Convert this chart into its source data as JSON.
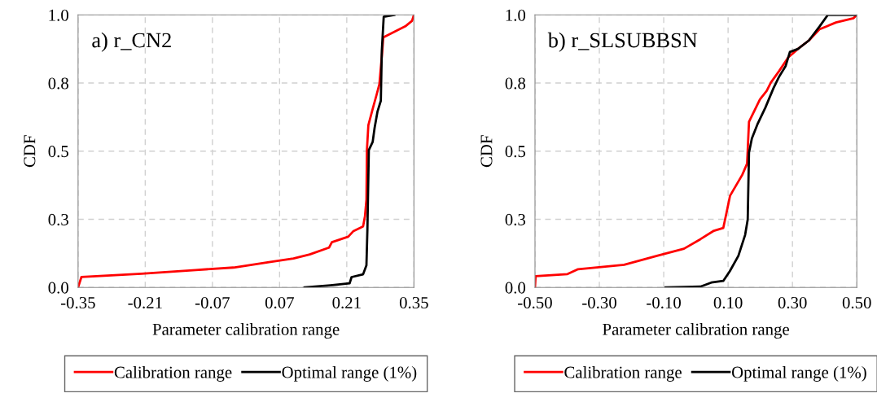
{
  "chart_data": [
    {
      "type": "line",
      "xlabel": "Parameter calibration range",
      "ylabel": "CDF",
      "annotations": [
        "a) r_CN2"
      ],
      "xlim": [
        -0.35,
        0.35
      ],
      "xticks": [
        {
          "value": -0.35,
          "label": "-0.35"
        },
        {
          "value": -0.21,
          "label": "-0.21"
        },
        {
          "value": -0.07,
          "label": "-0.07"
        },
        {
          "value": 0.07,
          "label": "0.07"
        },
        {
          "value": 0.21,
          "label": "0.21"
        },
        {
          "value": 0.35,
          "label": "0.35"
        }
      ],
      "ylim": [
        0,
        1
      ],
      "yticks": [
        {
          "value": 0,
          "label": "0.0"
        },
        {
          "value": 0.25,
          "label": "0.3"
        },
        {
          "value": 0.5,
          "label": "0.5"
        },
        {
          "value": 0.75,
          "label": "0.8"
        },
        {
          "value": 1,
          "label": "1.0"
        }
      ],
      "grid": true,
      "legend": "bottom",
      "marker": "none",
      "line_style": "solid",
      "series": [
        {
          "name": "Calibration range",
          "color": "#ff0000",
          "x": [
            -0.35,
            -0.343,
            -0.218,
            -0.105,
            -0.026,
            0.048,
            0.099,
            0.133,
            0.173,
            0.179,
            0.213,
            0.224,
            0.244,
            0.248,
            0.251,
            0.252,
            0.255,
            0.264,
            0.272,
            0.278,
            0.284,
            0.286,
            0.332,
            0.346,
            0.35
          ],
          "values": [
            0,
            0.038,
            0.05,
            0.064,
            0.073,
            0.093,
            0.106,
            0.121,
            0.146,
            0.166,
            0.186,
            0.207,
            0.224,
            0.262,
            0.323,
            0.504,
            0.595,
            0.655,
            0.706,
            0.746,
            0.867,
            0.917,
            0.958,
            0.978,
            1.0
          ]
        },
        {
          "name": "Optimal range (1%)",
          "color": "#000000",
          "x": [
            0.122,
            0.176,
            0.216,
            0.22,
            0.244,
            0.251,
            0.253,
            0.256,
            0.264,
            0.268,
            0.274,
            0.281,
            0.283,
            0.287,
            0.309
          ],
          "values": [
            0,
            0.008,
            0.015,
            0.038,
            0.048,
            0.081,
            0.212,
            0.504,
            0.534,
            0.585,
            0.645,
            0.685,
            0.867,
            0.993,
            1.0
          ]
        }
      ]
    },
    {
      "type": "line",
      "xlabel": "Parameter calibration range",
      "ylabel": "CDF",
      "annotations": [
        "b) r_SLSUBBSN"
      ],
      "xlim": [
        -0.5,
        0.5
      ],
      "xticks": [
        {
          "value": -0.5,
          "label": "-0.50"
        },
        {
          "value": -0.3,
          "label": "-0.30"
        },
        {
          "value": -0.1,
          "label": "-0.10"
        },
        {
          "value": 0.1,
          "label": "0.10"
        },
        {
          "value": 0.3,
          "label": "0.30"
        },
        {
          "value": 0.5,
          "label": "0.50"
        }
      ],
      "ylim": [
        0,
        1
      ],
      "yticks": [
        {
          "value": 0,
          "label": "0.0"
        },
        {
          "value": 0.25,
          "label": "0.3"
        },
        {
          "value": 0.5,
          "label": "0.5"
        },
        {
          "value": 0.75,
          "label": "0.8"
        },
        {
          "value": 1,
          "label": "1.0"
        }
      ],
      "grid": true,
      "legend": "bottom",
      "marker": "none",
      "line_style": "solid",
      "series": [
        {
          "name": "Calibration range",
          "color": "#ff0000",
          "x": [
            -0.5,
            -0.498,
            -0.399,
            -0.366,
            -0.223,
            -0.121,
            -0.037,
            0.014,
            0.056,
            0.085,
            0.098,
            0.106,
            0.144,
            0.159,
            0.165,
            0.178,
            0.199,
            0.22,
            0.233,
            0.258,
            0.287,
            0.317,
            0.351,
            0.384,
            0.435,
            0.49,
            0.5
          ],
          "values": [
            0,
            0.041,
            0.049,
            0.067,
            0.083,
            0.116,
            0.142,
            0.177,
            0.208,
            0.218,
            0.29,
            0.336,
            0.413,
            0.454,
            0.608,
            0.639,
            0.69,
            0.721,
            0.752,
            0.793,
            0.844,
            0.875,
            0.906,
            0.947,
            0.972,
            0.988,
            1.0
          ]
        },
        {
          "name": "Optimal range (1%)",
          "color": "#000000",
          "x": [
            -0.094,
            0.014,
            0.048,
            0.085,
            0.105,
            0.132,
            0.153,
            0.161,
            0.165,
            0.174,
            0.191,
            0.216,
            0.241,
            0.258,
            0.279,
            0.292,
            0.317,
            0.351,
            0.384,
            0.41,
            0.5
          ],
          "values": [
            0,
            0.003,
            0.018,
            0.024,
            0.059,
            0.116,
            0.193,
            0.249,
            0.495,
            0.547,
            0.598,
            0.66,
            0.731,
            0.772,
            0.813,
            0.864,
            0.875,
            0.906,
            0.957,
            1.0,
            1.0
          ]
        }
      ]
    }
  ]
}
